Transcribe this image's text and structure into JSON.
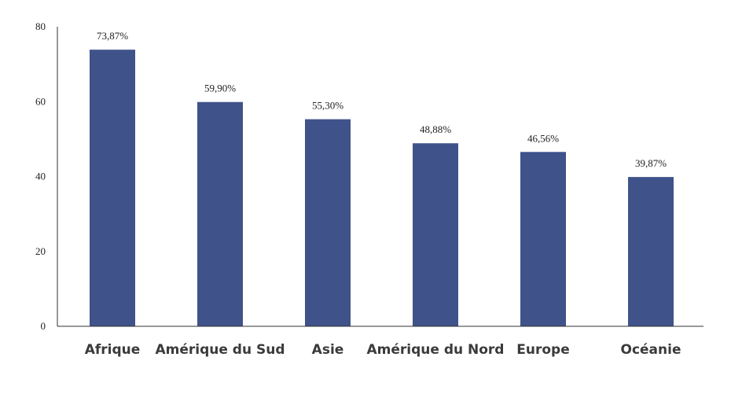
{
  "chart_data": {
    "type": "bar",
    "categories": [
      "Afrique",
      "Amérique du Sud",
      "Asie",
      "Amérique du Nord",
      "Europe",
      "Océanie"
    ],
    "values": [
      73.87,
      59.9,
      55.3,
      48.88,
      46.56,
      39.87
    ],
    "data_labels": [
      "73,87%",
      "59,90%",
      "55,30%",
      "48,88%",
      "46,56%",
      "39,87%"
    ],
    "ylim": [
      0,
      80
    ],
    "yticks": [
      0,
      20,
      40,
      60,
      80
    ],
    "ytick_labels": [
      "0",
      "20",
      "40",
      "60",
      "80"
    ],
    "title": "",
    "xlabel": "",
    "ylabel": "",
    "grid": false,
    "legend": "none",
    "bar_color": "#40528a"
  }
}
